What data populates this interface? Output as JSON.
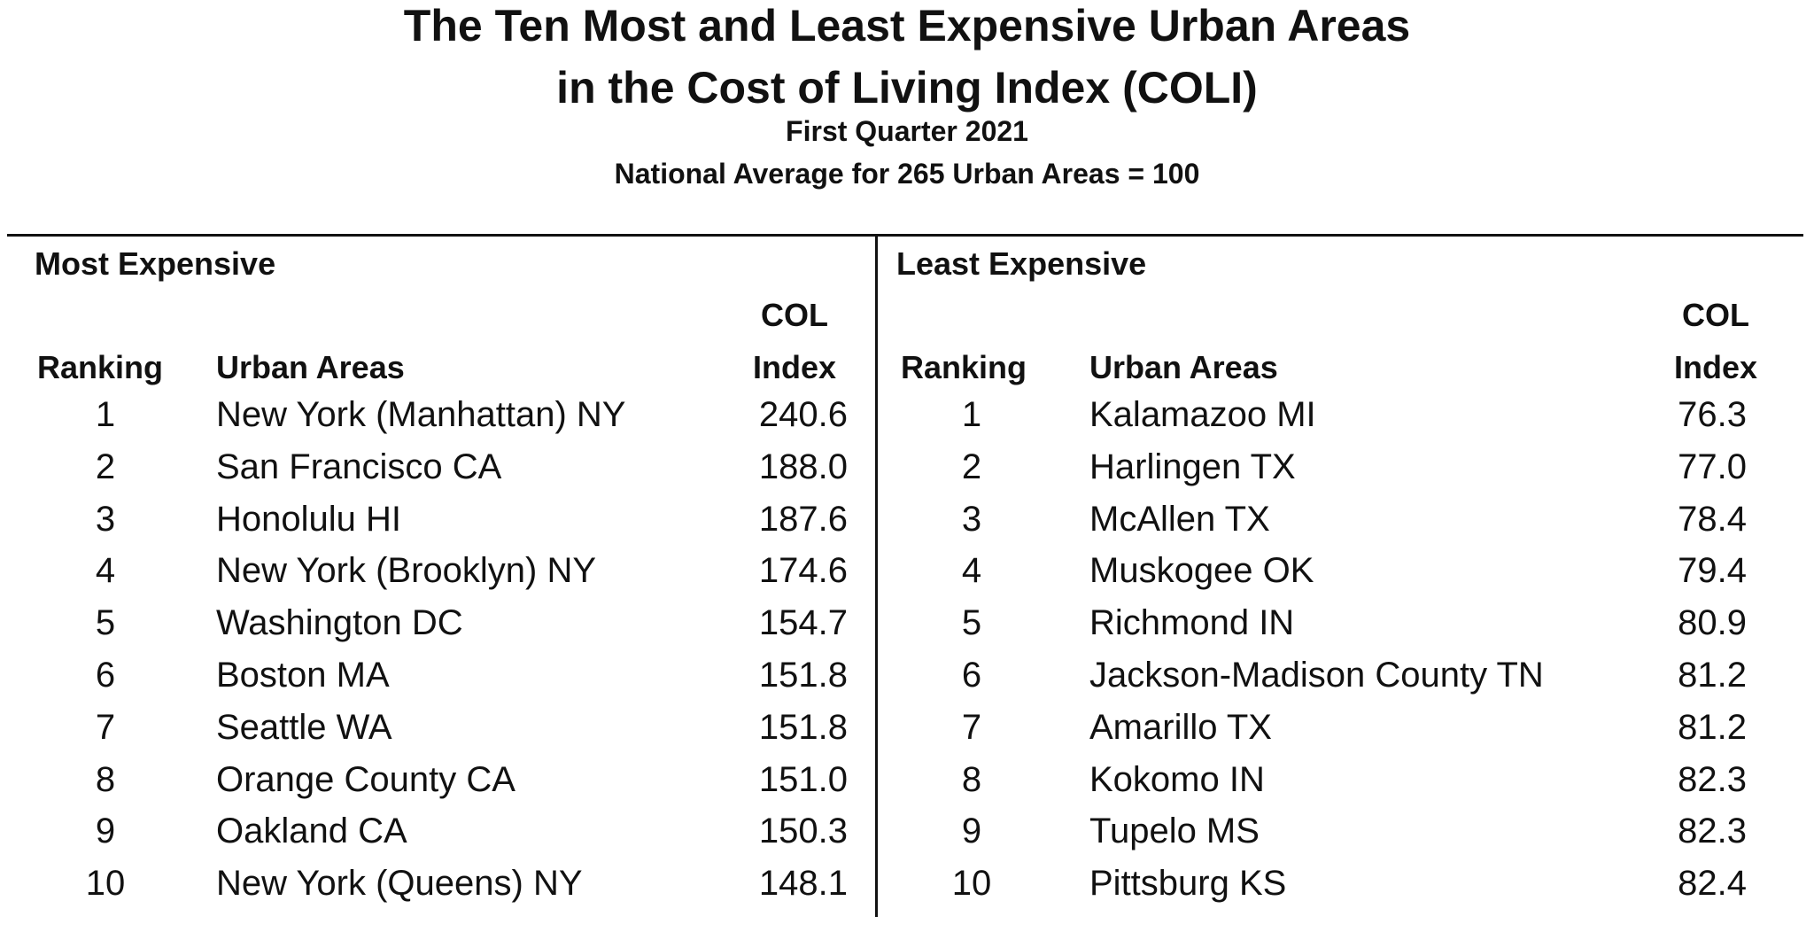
{
  "title_line1": "The Ten Most and Least Expensive Urban Areas",
  "title_line2": "in the Cost of Living Index (COLI)",
  "subtitle": "First Quarter 2021",
  "note": "National Average for 265 Urban Areas = 100",
  "most_expensive": {
    "heading": "Most Expensive",
    "col_ranking": "Ranking",
    "col_area": "Urban Areas",
    "col_index_line1": "COL",
    "col_index_line2": "Index",
    "rows": [
      {
        "rank": "1",
        "area": "New York (Manhattan) NY",
        "index": "240.6"
      },
      {
        "rank": "2",
        "area": "San Francisco CA",
        "index": "188.0"
      },
      {
        "rank": "3",
        "area": "Honolulu HI",
        "index": "187.6"
      },
      {
        "rank": "4",
        "area": "New York (Brooklyn) NY",
        "index": "174.6"
      },
      {
        "rank": "5",
        "area": "Washington DC",
        "index": "154.7"
      },
      {
        "rank": "6",
        "area": "Boston MA",
        "index": "151.8"
      },
      {
        "rank": "7",
        "area": "Seattle WA",
        "index": "151.8"
      },
      {
        "rank": "8",
        "area": "Orange County CA",
        "index": "151.0"
      },
      {
        "rank": "9",
        "area": "Oakland CA",
        "index": "150.3"
      },
      {
        "rank": "10",
        "area": "New York (Queens) NY",
        "index": "148.1"
      }
    ]
  },
  "least_expensive": {
    "heading": "Least Expensive",
    "col_ranking": "Ranking",
    "col_area": "Urban Areas",
    "col_index_line1": "COL",
    "col_index_line2": "Index",
    "rows": [
      {
        "rank": "1",
        "area": "Kalamazoo MI",
        "index": "76.3"
      },
      {
        "rank": "2",
        "area": "Harlingen TX",
        "index": "77.0"
      },
      {
        "rank": "3",
        "area": "McAllen TX",
        "index": "78.4"
      },
      {
        "rank": "4",
        "area": "Muskogee OK",
        "index": "79.4"
      },
      {
        "rank": "5",
        "area": "Richmond IN",
        "index": "80.9"
      },
      {
        "rank": "6",
        "area": "Jackson-Madison County TN",
        "index": "81.2"
      },
      {
        "rank": "7",
        "area": "Amarillo TX",
        "index": "81.2"
      },
      {
        "rank": "8",
        "area": "Kokomo IN",
        "index": "82.3"
      },
      {
        "rank": "9",
        "area": "Tupelo MS",
        "index": "82.3"
      },
      {
        "rank": "10",
        "area": "Pittsburg KS",
        "index": "82.4"
      }
    ]
  }
}
